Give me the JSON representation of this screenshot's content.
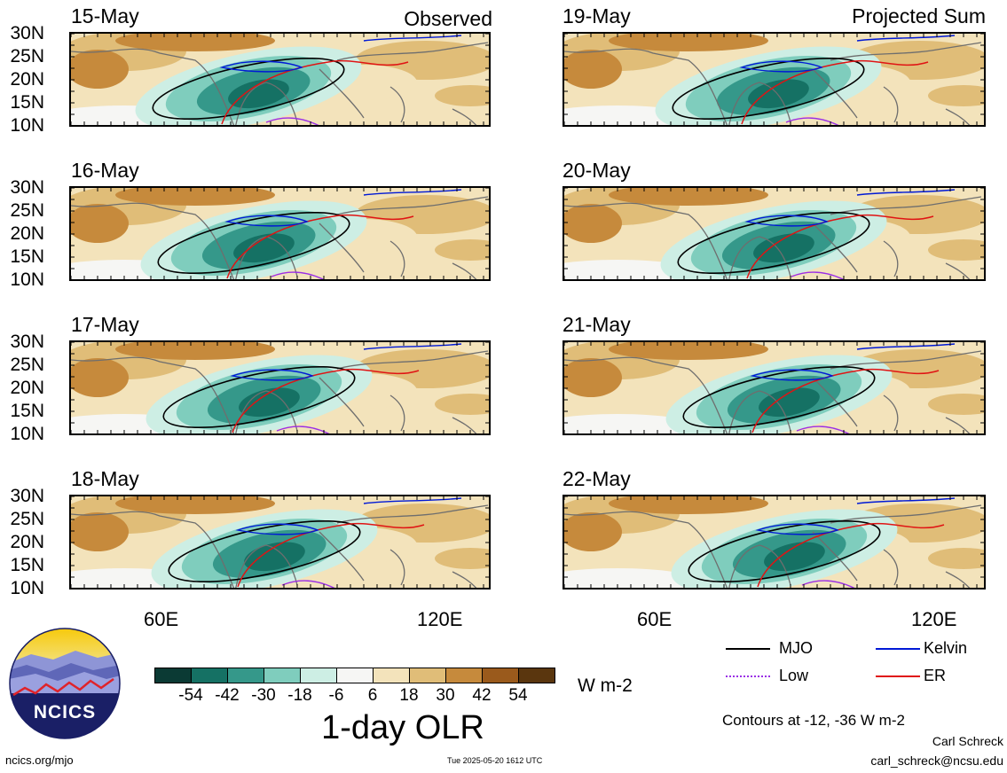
{
  "panels": [
    {
      "date": "15-May",
      "tag": "Observed"
    },
    {
      "date": "19-May",
      "tag": "Projected Sum"
    },
    {
      "date": "16-May",
      "tag": ""
    },
    {
      "date": "20-May",
      "tag": ""
    },
    {
      "date": "17-May",
      "tag": ""
    },
    {
      "date": "21-May",
      "tag": ""
    },
    {
      "date": "18-May",
      "tag": ""
    },
    {
      "date": "22-May",
      "tag": ""
    }
  ],
  "lat_ticks": [
    "30N",
    "25N",
    "20N",
    "15N",
    "10N"
  ],
  "lon_ticks": [
    "60E",
    "120E"
  ],
  "colorbar": {
    "labels": [
      "-54",
      "-42",
      "-30",
      "-18",
      "-6",
      "6",
      "18",
      "30",
      "42",
      "54"
    ],
    "colors": [
      "#0b3a34",
      "#157164",
      "#35988a",
      "#7fcdbd",
      "#cdeee4",
      "#f6f6f4",
      "#f3e3bb",
      "#e0bd78",
      "#c68a3c",
      "#9a5a1c",
      "#5a360e"
    ],
    "units": "W m-2",
    "title": "1-day OLR"
  },
  "legend": {
    "mjo": "MJO",
    "kelvin": "Kelvin",
    "low": "Low",
    "er": "ER",
    "colors": {
      "mjo": "#000000",
      "kelvin": "#0019d6",
      "low": "#9a2ee6",
      "er": "#e01414"
    }
  },
  "contours_note": "Contours at -12, -36 W m-2",
  "author": "Carl Schreck",
  "email": "carl_schreck@ncsu.edu",
  "site": "ncics.org/mjo",
  "timestamp": "Tue 2025-05-20 1612 UTC",
  "logo_text": "NCICS"
}
